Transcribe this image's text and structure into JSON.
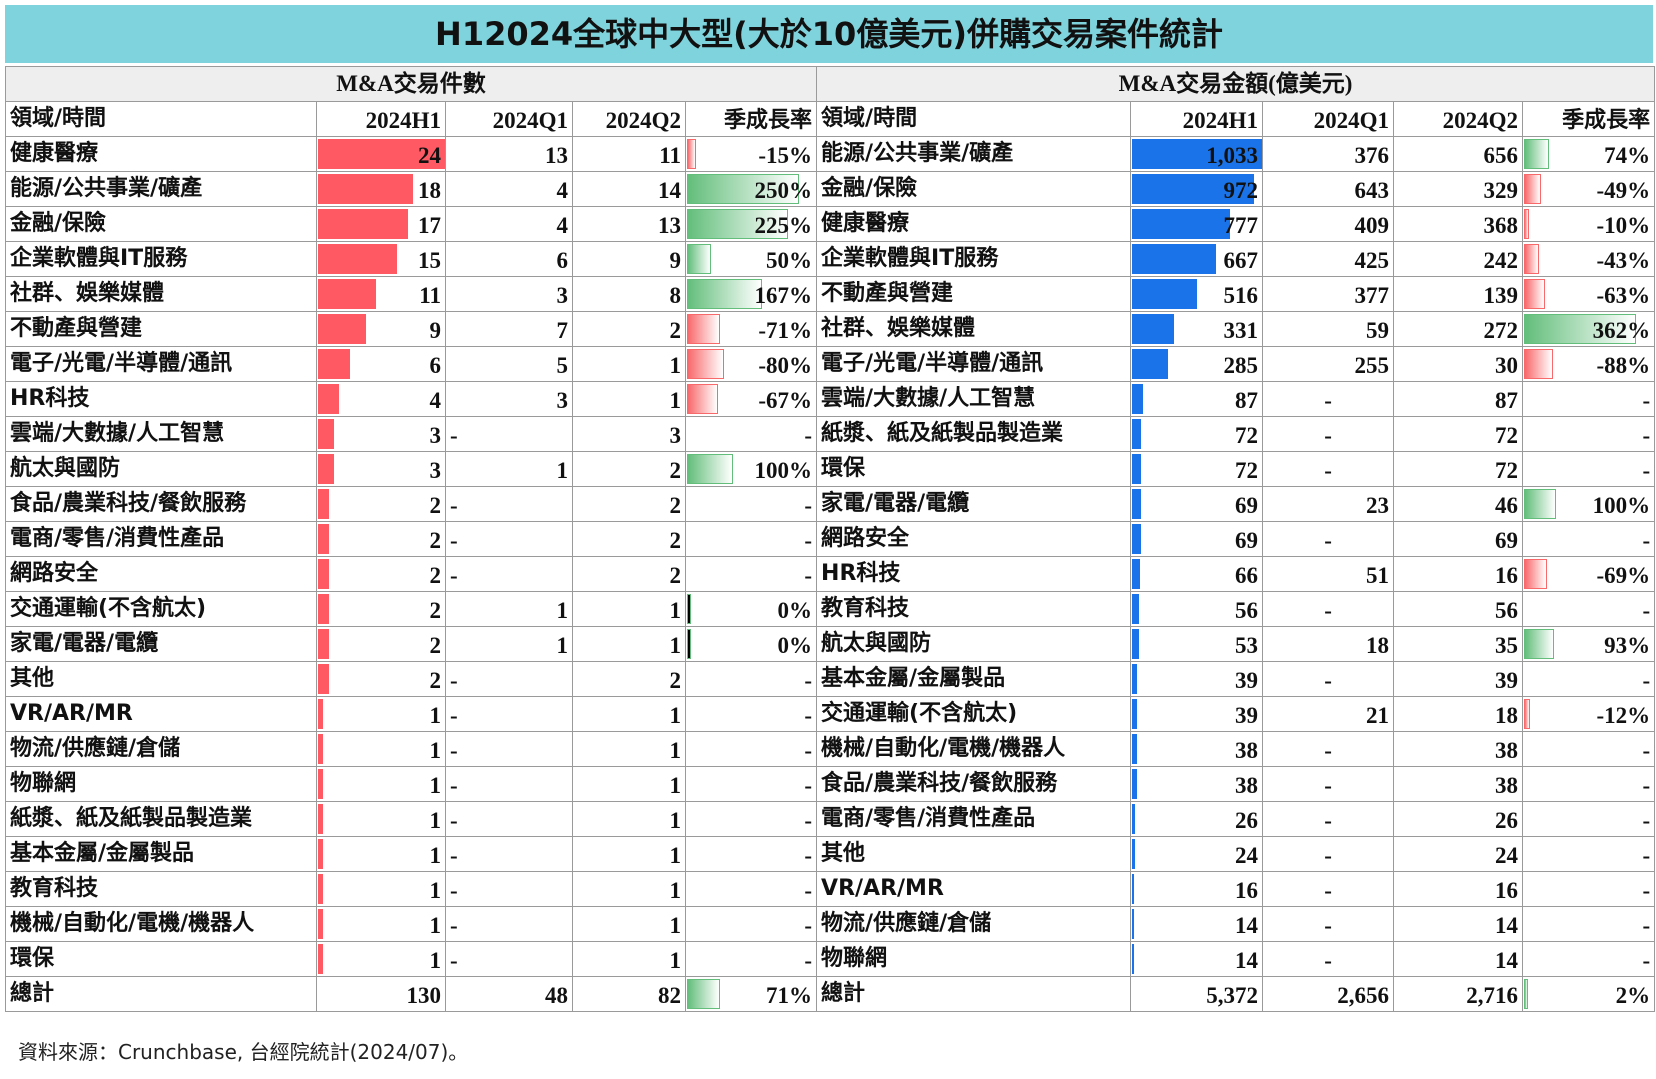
{
  "title": "H12024全球中大型(大於10億美元)併購交易案件統計",
  "source": "資料來源：Crunchbase, 台經院統計(2024/07)。",
  "left": {
    "group_header": "M&A交易件數",
    "columns": [
      "領域/時間",
      "2024H1",
      "2024Q1",
      "2024Q2",
      "季成長率"
    ],
    "rows": [
      [
        "健康醫療",
        "24",
        "13",
        "11",
        "-15%"
      ],
      [
        "能源/公共事業/礦產",
        "18",
        "4",
        "14",
        "250%"
      ],
      [
        "金融/保險",
        "17",
        "4",
        "13",
        "225%"
      ],
      [
        "企業軟體與IT服務",
        "15",
        "6",
        "9",
        "50%"
      ],
      [
        "社群、娛樂媒體",
        "11",
        "3",
        "8",
        "167%"
      ],
      [
        "不動產與營建",
        "9",
        "7",
        "2",
        "-71%"
      ],
      [
        "電子/光電/半導體/通訊",
        "6",
        "5",
        "1",
        "-80%"
      ],
      [
        "HR科技",
        "4",
        "3",
        "1",
        "-67%"
      ],
      [
        "雲端/大數據/人工智慧",
        "3",
        "-",
        "3",
        "-"
      ],
      [
        "航太與國防",
        "3",
        "1",
        "2",
        "100%"
      ],
      [
        "食品/農業科技/餐飲服務",
        "2",
        "-",
        "2",
        "-"
      ],
      [
        "電商/零售/消費性產品",
        "2",
        "-",
        "2",
        "-"
      ],
      [
        "網路安全",
        "2",
        "-",
        "2",
        "-"
      ],
      [
        "交通運輸(不含航太)",
        "2",
        "1",
        "1",
        "0%"
      ],
      [
        "家電/電器/電纜",
        "2",
        "1",
        "1",
        "0%"
      ],
      [
        "其他",
        "2",
        "-",
        "2",
        "-"
      ],
      [
        "VR/AR/MR",
        "1",
        "-",
        "1",
        "-"
      ],
      [
        "物流/供應鏈/倉儲",
        "1",
        "-",
        "1",
        "-"
      ],
      [
        "物聯網",
        "1",
        "-",
        "1",
        "-"
      ],
      [
        "紙漿、紙及紙製品製造業",
        "1",
        "-",
        "1",
        "-"
      ],
      [
        "基本金屬/金屬製品",
        "1",
        "-",
        "1",
        "-"
      ],
      [
        "教育科技",
        "1",
        "-",
        "1",
        "-"
      ],
      [
        "機械/自動化/電機/機器人",
        "1",
        "-",
        "1",
        "-"
      ],
      [
        "環保",
        "1",
        "-",
        "1",
        "-"
      ]
    ],
    "total": [
      "總計",
      "130",
      "48",
      "82",
      "71%"
    ]
  },
  "right": {
    "group_header": "M&A交易金額(億美元)",
    "columns": [
      "領域/時間",
      "2024H1",
      "2024Q1",
      "2024Q2",
      "季成長率"
    ],
    "rows": [
      [
        "能源/公共事業/礦產",
        "1,033",
        "376",
        "656",
        "74%"
      ],
      [
        "金融/保險",
        "972",
        "643",
        "329",
        "-49%"
      ],
      [
        "健康醫療",
        "777",
        "409",
        "368",
        "-10%"
      ],
      [
        "企業軟體與IT服務",
        "667",
        "425",
        "242",
        "-43%"
      ],
      [
        "不動產與營建",
        "516",
        "377",
        "139",
        "-63%"
      ],
      [
        "社群、娛樂媒體",
        "331",
        "59",
        "272",
        "362%"
      ],
      [
        "電子/光電/半導體/通訊",
        "285",
        "255",
        "30",
        "-88%"
      ],
      [
        "雲端/大數據/人工智慧",
        "87",
        "-",
        "87",
        "-"
      ],
      [
        "紙漿、紙及紙製品製造業",
        "72",
        "-",
        "72",
        "-"
      ],
      [
        "環保",
        "72",
        "-",
        "72",
        "-"
      ],
      [
        "家電/電器/電纜",
        "69",
        "23",
        "46",
        "100%"
      ],
      [
        "網路安全",
        "69",
        "-",
        "69",
        "-"
      ],
      [
        "HR科技",
        "66",
        "51",
        "16",
        "-69%"
      ],
      [
        "教育科技",
        "56",
        "-",
        "56",
        "-"
      ],
      [
        "航太與國防",
        "53",
        "18",
        "35",
        "93%"
      ],
      [
        "基本金屬/金屬製品",
        "39",
        "-",
        "39",
        "-"
      ],
      [
        "交通運輸(不含航太)",
        "39",
        "21",
        "18",
        "-12%"
      ],
      [
        "機械/自動化/電機/機器人",
        "38",
        "-",
        "38",
        "-"
      ],
      [
        "食品/農業科技/餐飲服務",
        "38",
        "-",
        "38",
        "-"
      ],
      [
        "電商/零售/消費性產品",
        "26",
        "-",
        "26",
        "-"
      ],
      [
        "其他",
        "24",
        "-",
        "24",
        "-"
      ],
      [
        "VR/AR/MR",
        "16",
        "-",
        "16",
        "-"
      ],
      [
        "物流/供應鏈/倉儲",
        "14",
        "-",
        "14",
        "-"
      ],
      [
        "物聯網",
        "14",
        "-",
        "14",
        "-"
      ]
    ],
    "total": [
      "總計",
      "5,372",
      "2,656",
      "2,716",
      "2%"
    ]
  }
}
